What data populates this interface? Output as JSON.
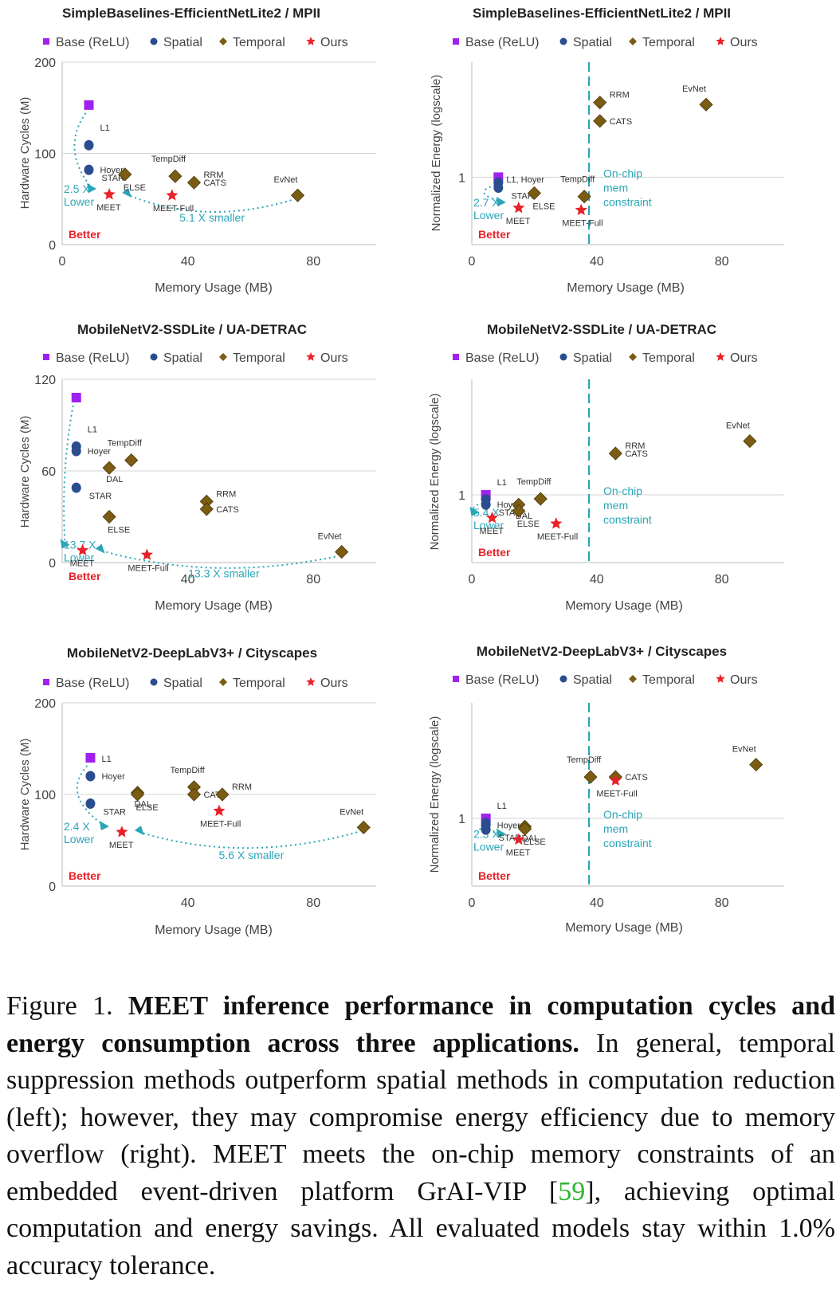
{
  "legend": {
    "base": "Base (ReLU)",
    "spatial": "Spatial",
    "temporal": "Temporal",
    "ours": "Ours"
  },
  "colors": {
    "base": "#a020f0",
    "spatial": "#2a4d8f",
    "temporal": "#7a5c12",
    "ours": "#e8222a",
    "annotation": "#2aa6b8",
    "better": "#e8222a"
  },
  "chart_data": [
    {
      "type": "scatter",
      "panel": "left",
      "title": "SimpleBaselines-EfficientNetLite2 / MPII",
      "xlabel": "Memory Usage (MB)",
      "ylabel": "Hardware Cycles (M)",
      "xlim": [
        0,
        100
      ],
      "ylim": [
        0,
        200
      ],
      "xticks": [
        "0",
        "40",
        "80"
      ],
      "yticks": [
        "0",
        "100",
        "200"
      ],
      "points": [
        {
          "group": "base",
          "x": 8.5,
          "y": 153
        },
        {
          "group": "spatial",
          "x": 8.5,
          "y": 109,
          "label": "L1"
        },
        {
          "group": "spatial",
          "x": 8.5,
          "y": 82,
          "label": "Hoyer"
        },
        {
          "group": "spatial",
          "x": 8.5,
          "y": 82,
          "label": "STAR"
        },
        {
          "group": "temporal",
          "x": 20,
          "y": 77,
          "label": "ELSE"
        },
        {
          "group": "temporal",
          "x": 36,
          "y": 75,
          "label": "TempDiff"
        },
        {
          "group": "temporal",
          "x": 42,
          "y": 68,
          "label": "RRM"
        },
        {
          "group": "temporal",
          "x": 42,
          "y": 68,
          "label": "CATS"
        },
        {
          "group": "temporal",
          "x": 75,
          "y": 54,
          "label": "EvNet"
        },
        {
          "group": "ours",
          "x": 15,
          "y": 55,
          "label": "MEET"
        },
        {
          "group": "ours",
          "x": 35,
          "y": 54,
          "label": "MEET-Full"
        }
      ],
      "annotations": {
        "lower_value": "2.5 X",
        "lower_word": "Lower",
        "smaller": "5.1 X smaller",
        "better": "Better"
      }
    },
    {
      "type": "scatter",
      "panel": "right",
      "title": "SimpleBaselines-EfficientNetLite2 / MPII",
      "xlabel": "Memory Usage (MB)",
      "ylabel": "Normalized Energy (logscale)",
      "xlim": [
        0,
        100
      ],
      "ylim": [
        0.35,
        6
      ],
      "log_y": true,
      "xticks": [
        "0",
        "40",
        "80"
      ],
      "yticks": [
        "1"
      ],
      "constraint_x": 37.5,
      "constraint_label": [
        "On-chip",
        "mem",
        "constraint"
      ],
      "points": [
        {
          "group": "base",
          "x": 8.5,
          "y": 1.0
        },
        {
          "group": "spatial",
          "x": 8.5,
          "y": 0.92,
          "label": "L1, Hoyer"
        },
        {
          "group": "spatial",
          "x": 8.5,
          "y": 0.85,
          "label": "STAR"
        },
        {
          "group": "temporal",
          "x": 20,
          "y": 0.78,
          "label": "ELSE"
        },
        {
          "group": "temporal",
          "x": 36,
          "y": 0.74,
          "label": "TempDiff"
        },
        {
          "group": "temporal",
          "x": 41,
          "y": 3.2,
          "label": "RRM"
        },
        {
          "group": "temporal",
          "x": 41,
          "y": 2.4,
          "label": "CATS"
        },
        {
          "group": "temporal",
          "x": 75,
          "y": 3.1,
          "label": "EvNet"
        },
        {
          "group": "ours",
          "x": 15,
          "y": 0.62,
          "label": "MEET"
        },
        {
          "group": "ours",
          "x": 35,
          "y": 0.6,
          "label": "MEET-Full"
        }
      ],
      "annotations": {
        "lower_value": "2.7 X",
        "lower_word": "Lower",
        "better": "Better"
      }
    },
    {
      "type": "scatter",
      "panel": "left",
      "title": "MobileNetV2-SSDLite / UA-DETRAC",
      "xlabel": "Memory Usage (MB)",
      "ylabel": "Hardware Cycles (M)",
      "xlim": [
        0,
        100
      ],
      "ylim": [
        0,
        120
      ],
      "xticks": [
        "40",
        "80"
      ],
      "yticks": [
        "0",
        "60",
        "120"
      ],
      "points": [
        {
          "group": "base",
          "x": 4.5,
          "y": 108
        },
        {
          "group": "spatial",
          "x": 4.5,
          "y": 76,
          "label": "L1"
        },
        {
          "group": "spatial",
          "x": 4.5,
          "y": 73,
          "label": "Hoyer"
        },
        {
          "group": "spatial",
          "x": 4.5,
          "y": 49,
          "label": "STAR"
        },
        {
          "group": "temporal",
          "x": 15,
          "y": 62,
          "label": "DAL"
        },
        {
          "group": "temporal",
          "x": 22,
          "y": 67,
          "label": "TempDiff"
        },
        {
          "group": "temporal",
          "x": 15,
          "y": 30,
          "label": "ELSE"
        },
        {
          "group": "temporal",
          "x": 46,
          "y": 40,
          "label": "RRM"
        },
        {
          "group": "temporal",
          "x": 46,
          "y": 35,
          "label": "CATS"
        },
        {
          "group": "temporal",
          "x": 89,
          "y": 7,
          "label": "EvNet"
        },
        {
          "group": "ours",
          "x": 6.5,
          "y": 8,
          "label": "MEET"
        },
        {
          "group": "ours",
          "x": 27,
          "y": 5,
          "label": "MEET-Full"
        }
      ],
      "annotations": {
        "lower_value": "13.7 X",
        "lower_word": "Lower",
        "smaller": "13.3 X smaller",
        "better": "Better"
      }
    },
    {
      "type": "scatter",
      "panel": "right",
      "title": "MobileNetV2-SSDLite / UA-DETRAC",
      "xlabel": "Memory Usage (MB)",
      "ylabel": "Normalized Energy (logscale)",
      "xlim": [
        0,
        100
      ],
      "ylim": [
        0.35,
        6
      ],
      "log_y": true,
      "xticks": [
        "0",
        "40",
        "80"
      ],
      "yticks": [
        "1"
      ],
      "constraint_x": 37.5,
      "constraint_label": [
        "On-chip",
        "mem",
        "constraint"
      ],
      "points": [
        {
          "group": "base",
          "x": 4.5,
          "y": 1.0
        },
        {
          "group": "spatial",
          "x": 4.5,
          "y": 0.93,
          "label": "L1"
        },
        {
          "group": "spatial",
          "x": 4.5,
          "y": 0.86,
          "label": "Hoyer"
        },
        {
          "group": "spatial",
          "x": 4.5,
          "y": 0.86,
          "label": "STAR"
        },
        {
          "group": "temporal",
          "x": 15,
          "y": 0.86,
          "label": "DAL"
        },
        {
          "group": "temporal",
          "x": 22,
          "y": 0.94,
          "label": "TempDiff"
        },
        {
          "group": "temporal",
          "x": 15,
          "y": 0.78,
          "label": "ELSE"
        },
        {
          "group": "temporal",
          "x": 46,
          "y": 1.9,
          "label": "RRM"
        },
        {
          "group": "temporal",
          "x": 46,
          "y": 1.9,
          "label": "CATS"
        },
        {
          "group": "temporal",
          "x": 89,
          "y": 2.3,
          "label": "EvNet"
        },
        {
          "group": "ours",
          "x": 6.5,
          "y": 0.7,
          "label": "MEET"
        },
        {
          "group": "ours",
          "x": 27,
          "y": 0.64,
          "label": "MEET-Full"
        }
      ],
      "annotations": {
        "lower_value": "5.4 X",
        "lower_word": "Lower",
        "better": "Better"
      }
    },
    {
      "type": "scatter",
      "panel": "left",
      "title": "MobileNetV2-DeepLabV3+ / Cityscapes",
      "xlabel": "Memory Usage (MB)",
      "ylabel": "Hardware Cycles (M)",
      "xlim": [
        0,
        100
      ],
      "ylim": [
        0,
        200
      ],
      "xticks": [
        "40",
        "80"
      ],
      "yticks": [
        "0",
        "100",
        "200"
      ],
      "points": [
        {
          "group": "base",
          "x": 9,
          "y": 140
        },
        {
          "group": "spatial",
          "x": 9,
          "y": 120,
          "label": "L1"
        },
        {
          "group": "spatial",
          "x": 9,
          "y": 120,
          "label": "Hoyer"
        },
        {
          "group": "spatial",
          "x": 9,
          "y": 90,
          "label": "STAR"
        },
        {
          "group": "temporal",
          "x": 24,
          "y": 102,
          "label": "DAL"
        },
        {
          "group": "temporal",
          "x": 24,
          "y": 100,
          "label": "ELSE"
        },
        {
          "group": "temporal",
          "x": 42,
          "y": 108,
          "label": "TempDiff"
        },
        {
          "group": "temporal",
          "x": 42,
          "y": 100,
          "label": "CATS"
        },
        {
          "group": "temporal",
          "x": 51,
          "y": 100,
          "label": "RRM"
        },
        {
          "group": "temporal",
          "x": 96,
          "y": 64,
          "label": "EvNet"
        },
        {
          "group": "ours",
          "x": 19,
          "y": 59,
          "label": "MEET"
        },
        {
          "group": "ours",
          "x": 50,
          "y": 82,
          "label": "MEET-Full"
        }
      ],
      "annotations": {
        "lower_value": "2.4 X",
        "lower_word": "Lower",
        "smaller": "5.6 X smaller",
        "better": "Better"
      }
    },
    {
      "type": "scatter",
      "panel": "right",
      "title": "MobileNetV2-DeepLabV3+ / Cityscapes",
      "xlabel": "Memory Usage (MB)",
      "ylabel": "Normalized Energy (logscale)",
      "xlim": [
        0,
        100
      ],
      "ylim": [
        0.35,
        6
      ],
      "log_y": true,
      "xticks": [
        "0",
        "40",
        "80"
      ],
      "yticks": [
        "1"
      ],
      "constraint_x": 37.5,
      "constraint_label": [
        "On-chip",
        "mem",
        "constraint"
      ],
      "points": [
        {
          "group": "base",
          "x": 4.5,
          "y": 1.0
        },
        {
          "group": "spatial",
          "x": 4.5,
          "y": 0.93,
          "label": "L1"
        },
        {
          "group": "spatial",
          "x": 4.5,
          "y": 0.9,
          "label": "Hoyer"
        },
        {
          "group": "spatial",
          "x": 4.5,
          "y": 0.84,
          "label": "STAR"
        },
        {
          "group": "temporal",
          "x": 17,
          "y": 0.88,
          "label": "DAL"
        },
        {
          "group": "temporal",
          "x": 17,
          "y": 0.85,
          "label": "ELSE"
        },
        {
          "group": "temporal",
          "x": 38,
          "y": 1.9,
          "label": "TempDiff"
        },
        {
          "group": "temporal",
          "x": 46,
          "y": 1.9,
          "label": "CATS"
        },
        {
          "group": "temporal",
          "x": 91,
          "y": 2.3,
          "label": "EvNet"
        },
        {
          "group": "ours",
          "x": 15,
          "y": 0.72,
          "label": "MEET"
        },
        {
          "group": "ours",
          "x": 46,
          "y": 1.8,
          "label": "MEET-Full"
        }
      ],
      "annotations": {
        "lower_value": "2.3 X",
        "lower_word": "Lower",
        "better": "Better"
      }
    }
  ],
  "caption": {
    "figure_label": "Figure 1.",
    "bold": "MEET inference performance in computation cycles and energy consumption across three applications.",
    "text_before_cite": "In general, temporal suppression methods outperform spatial methods in computation reduction (left); however, they may compromise energy efficiency due to memory overflow (right). MEET meets the on-chip memory constraints of an embedded event-driven platform GrAI-VIP [",
    "cite": "59",
    "text_after_cite": "], achieving optimal computation and energy savings. All evaluated models stay within 1.0% accuracy tolerance."
  }
}
